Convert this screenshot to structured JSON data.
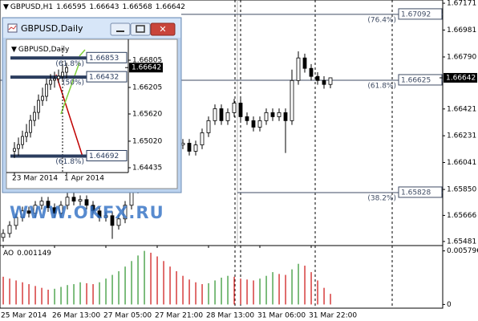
{
  "chart_data": [
    {
      "type": "candlestick",
      "title": "GBPUSD,H1",
      "header_values": [
        1.66595,
        1.66643,
        1.66568,
        1.66642
      ],
      "categories": [
        "25 Mar 2014",
        null,
        null,
        null,
        null,
        null,
        null,
        null,
        "26 Mar 13:00",
        null,
        null,
        null,
        null,
        null,
        null,
        null,
        "27 Mar 05:00",
        null,
        null,
        null,
        null,
        null,
        null,
        null,
        "27 Mar 21:00",
        null,
        null,
        null,
        null,
        null,
        null,
        null,
        "28 Mar 13:00",
        null,
        null,
        null,
        null,
        null,
        null,
        null,
        "31 Mar 06:00",
        null,
        null,
        null,
        null,
        null,
        null,
        null,
        "31 Mar 22:00",
        null,
        null,
        null
      ],
      "open": [
        1.6551,
        1.65538,
        1.65595,
        1.65652,
        1.65698,
        1.65681,
        1.65738,
        1.65767,
        1.65721,
        1.65681,
        1.65738,
        1.65795,
        1.65767,
        1.65778,
        1.65738,
        1.65698,
        1.65652,
        1.65664,
        1.65595,
        1.65641,
        1.65738,
        1.65852,
        1.65966,
        1.66052,
        1.66109,
        1.66155,
        1.66178,
        1.66138,
        1.66166,
        1.66178,
        1.66121,
        1.66166,
        1.66252,
        1.66338,
        1.66423,
        1.66338,
        1.66395,
        1.66463,
        1.66366,
        1.66338,
        1.66292,
        1.66338,
        1.66395,
        1.66366,
        1.66395,
        1.66338,
        1.66623,
        1.66783,
        1.66709,
        1.66652,
        1.66623,
        1.66595
      ],
      "high": [
        1.65568,
        1.65625,
        1.65682,
        1.65728,
        1.65728,
        1.65768,
        1.65797,
        1.65797,
        1.65751,
        1.65768,
        1.65825,
        1.65825,
        1.65808,
        1.65808,
        1.65768,
        1.65728,
        1.65694,
        1.65694,
        1.65671,
        1.65768,
        1.65882,
        1.65996,
        1.66082,
        1.66139,
        1.66185,
        1.66208,
        1.66208,
        1.66196,
        1.66208,
        1.66208,
        1.66196,
        1.66282,
        1.66368,
        1.66453,
        1.66453,
        1.66425,
        1.66493,
        1.66493,
        1.66396,
        1.66368,
        1.66368,
        1.66425,
        1.66425,
        1.66425,
        1.66425,
        1.667,
        1.6683,
        1.66813,
        1.66739,
        1.66682,
        1.66653,
        1.66643
      ],
      "low": [
        1.6548,
        1.65508,
        1.65565,
        1.65622,
        1.65651,
        1.65651,
        1.65708,
        1.65691,
        1.65651,
        1.65651,
        1.65708,
        1.65737,
        1.65737,
        1.65708,
        1.65668,
        1.65622,
        1.65622,
        1.655,
        1.65565,
        1.65611,
        1.65708,
        1.65822,
        1.65936,
        1.66022,
        1.66079,
        1.66125,
        1.66108,
        1.66108,
        1.66136,
        1.66091,
        1.66091,
        1.66136,
        1.66222,
        1.66308,
        1.66308,
        1.66308,
        1.66365,
        1.66336,
        1.66308,
        1.66262,
        1.66262,
        1.66308,
        1.66336,
        1.66336,
        1.66109,
        1.66308,
        1.66593,
        1.66679,
        1.66622,
        1.66593,
        1.66565,
        1.66568
      ],
      "close": [
        1.65538,
        1.65595,
        1.65652,
        1.65698,
        1.65681,
        1.65738,
        1.65767,
        1.65721,
        1.65681,
        1.65738,
        1.65795,
        1.65767,
        1.65778,
        1.65738,
        1.65698,
        1.65652,
        1.65664,
        1.65595,
        1.65641,
        1.65738,
        1.65852,
        1.65966,
        1.66052,
        1.66109,
        1.66155,
        1.66178,
        1.66138,
        1.66166,
        1.66178,
        1.66121,
        1.66166,
        1.66252,
        1.66338,
        1.66423,
        1.66338,
        1.66395,
        1.66463,
        1.66366,
        1.66338,
        1.66292,
        1.66338,
        1.66395,
        1.66366,
        1.66395,
        1.66338,
        1.66623,
        1.66783,
        1.66709,
        1.66652,
        1.66623,
        1.66595,
        1.66642
      ],
      "ylim": [
        1.65452,
        1.67194
      ],
      "yticks": [
        1.67171,
        1.66981,
        {
          "value": 1.6679,
          "label": "1.66790"
        },
        1.66421,
        1.66231,
        1.66041,
        {
          "value": 1.6585,
          "label": "1.65850"
        },
        1.65666,
        1.65481
      ],
      "current_price": 1.66642,
      "levels": [
        {
          "value": 1.67092,
          "ratio": "(76.4%)"
        },
        {
          "value": 1.66625,
          "ratio": "(61.8%)"
        },
        {
          "value": 1.65828,
          "ratio": "(38.2%)"
        }
      ],
      "level_color": "#3f4b63",
      "color": "#000000",
      "watermark": "WWW.OKFX.RU"
    },
    {
      "type": "bar",
      "title": "AO",
      "indicator_value": 0.001149,
      "values": [
        0.003,
        0.0028,
        0.0026,
        0.0024,
        0.0022,
        0.002,
        0.0018,
        0.0016,
        0.0017,
        0.0019,
        0.0021,
        0.0022,
        0.0024,
        0.0023,
        0.0022,
        0.0024,
        0.0028,
        0.0032,
        0.0036,
        0.0041,
        0.0047,
        0.0053,
        0.0058,
        0.0056,
        0.0052,
        0.0047,
        0.0041,
        0.0036,
        0.0031,
        0.0027,
        0.0024,
        0.0022,
        0.0023,
        0.0026,
        0.0029,
        0.0031,
        0.003,
        0.0028,
        0.0027,
        0.0026,
        0.0028,
        0.0031,
        0.0035,
        0.0033,
        0.0032,
        0.0038,
        0.0044,
        0.0042,
        0.0035,
        0.0026,
        0.0018,
        0.001149
      ],
      "ylim": [
        -0.0004,
        0.0062
      ],
      "yticks": [
        0.005796,
        0
      ],
      "up_color": "#3a9a3a",
      "down_color": "#d02020"
    },
    {
      "type": "candlestick",
      "window_title": "GBPUSD,Daily",
      "title": "GBPUSD,Daily",
      "categories": [
        "23 Mar 2014",
        null,
        null,
        null,
        null,
        null,
        null,
        null,
        null,
        null,
        null,
        null,
        null,
        "1 Apr 2014"
      ],
      "open": [
        1.648,
        1.64858,
        1.64946,
        1.65124,
        1.65212,
        1.65478,
        1.65655,
        1.6592,
        1.66009,
        1.66274,
        1.66363,
        1.66398,
        1.66451,
        1.6654
      ],
      "high": [
        1.65,
        1.651,
        1.6525,
        1.654,
        1.656,
        1.658,
        1.6605,
        1.662,
        1.664,
        1.665,
        1.6655,
        1.666,
        1.667,
        1.6675
      ],
      "low": [
        1.6465,
        1.647,
        1.6485,
        1.65,
        1.651,
        1.6535,
        1.655,
        1.658,
        1.659,
        1.6615,
        1.662,
        1.663,
        1.6635,
        1.664
      ],
      "close": [
        1.64858,
        1.64946,
        1.65124,
        1.65212,
        1.65478,
        1.65655,
        1.6592,
        1.66009,
        1.66274,
        1.66363,
        1.66398,
        1.66451,
        1.6654,
        1.66642
      ],
      "ylim": [
        1.64329,
        1.67159
      ],
      "yticks": [
        1.66805,
        1.66205,
        {
          "value": 1.6562,
          "label": "1.65620"
        },
        {
          "value": 1.6502,
          "label": "1.65020"
        },
        1.64435
      ],
      "current_price": 1.66642,
      "levels": [
        {
          "value": 1.66853,
          "ratio": "(61.8%)"
        },
        {
          "value": 1.66432,
          "ratio": "(50%)"
        },
        {
          "value": 1.64692,
          "ratio": "(61.8%)"
        }
      ],
      "level_color": "#2b3d5e",
      "color": "#000000"
    }
  ]
}
